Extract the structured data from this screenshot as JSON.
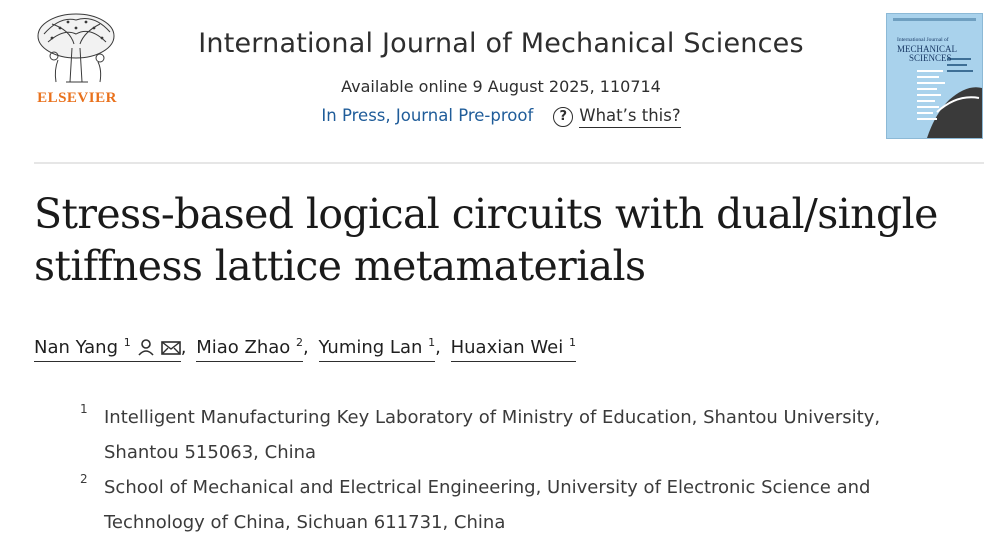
{
  "publisher": {
    "name": "ELSEVIER"
  },
  "header": {
    "journal": "International Journal of Mechanical Sciences",
    "available": "Available online 9 August 2025, 110714",
    "status": "In Press, Journal Pre-proof",
    "help_icon": "question-circle-icon",
    "whats_this": "What’s this?"
  },
  "cover": {
    "line1": "International Journal of",
    "line2": "MECHANICAL",
    "line3": "SCIENCES"
  },
  "article": {
    "title_line1": "Stress-based logical circuits with dual/single",
    "title_line2": "stiffness lattice metamaterials"
  },
  "authors": [
    {
      "name": "Nan Yang",
      "sup": "1",
      "icons": [
        "person-icon",
        "envelope-icon"
      ]
    },
    {
      "name": "Miao Zhao",
      "sup": "2"
    },
    {
      "name": "Yuming Lan",
      "sup": "1"
    },
    {
      "name": "Huaxian Wei",
      "sup": "1"
    }
  ],
  "affiliations": [
    {
      "num": "1",
      "line1": "Intelligent Manufacturing Key Laboratory of Ministry of Education, Shantou University,",
      "line2": "Shantou 515063, China"
    },
    {
      "num": "2",
      "line1": "School of Mechanical and Electrical Engineering, University of Electronic Science and",
      "line2": "Technology of China, Sichuan 611731, China"
    }
  ],
  "colors": {
    "accent": "#e9711c",
    "link": "#1f5c99"
  }
}
